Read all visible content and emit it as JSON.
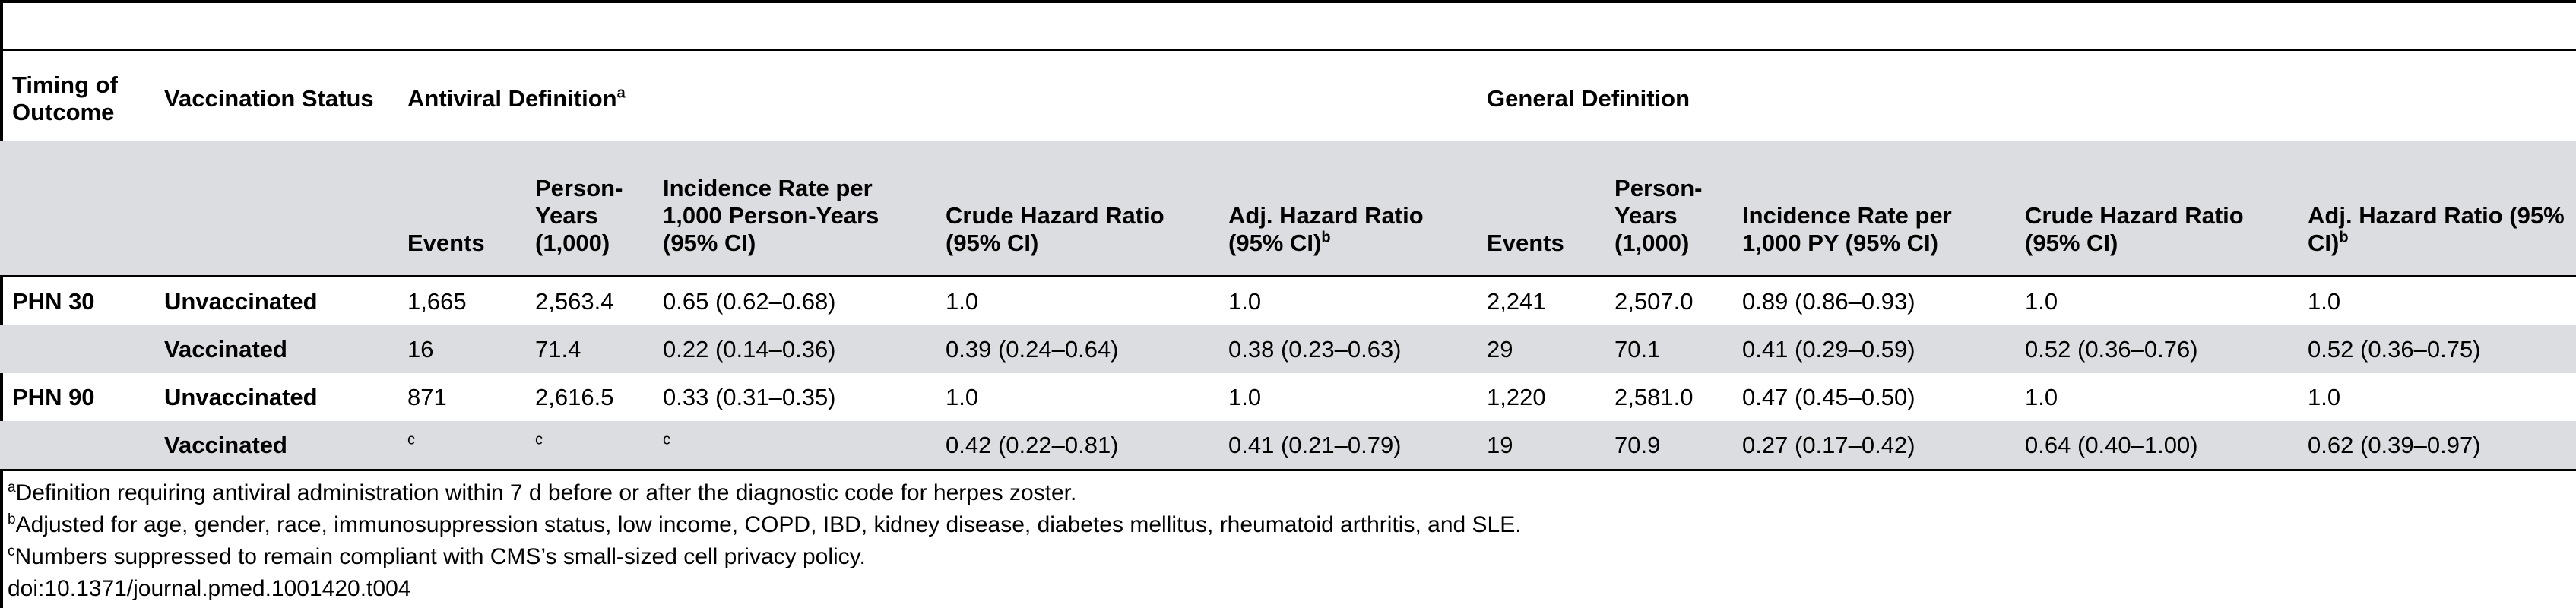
{
  "table": {
    "header": {
      "timing": "Timing of Outcome",
      "vaccination": "Vaccination Status",
      "antiviral_group": "Antiviral Definition",
      "antiviral_group_note": "a",
      "general_group": "General Definition",
      "antiviral_cols": [
        {
          "label": "Events",
          "note": ""
        },
        {
          "label": "Person-Years (1,000)",
          "note": ""
        },
        {
          "label": "Incidence Rate per 1,000 Person-Years (95% CI)",
          "note": ""
        },
        {
          "label": "Crude Hazard Ratio (95% CI)",
          "note": ""
        },
        {
          "label": "Adj. Hazard Ratio (95% CI)",
          "note": "b"
        }
      ],
      "general_cols": [
        {
          "label": "Events",
          "note": ""
        },
        {
          "label": "Person-Years (1,000)",
          "note": ""
        },
        {
          "label": "Incidence Rate per 1,000 PY (95% CI)",
          "note": ""
        },
        {
          "label": "Crude Hazard Ratio (95% CI)",
          "note": ""
        },
        {
          "label": "Adj. Hazard Ratio (95% CI)",
          "note": "b"
        }
      ]
    },
    "rows": [
      {
        "timing": "PHN 30",
        "status": "Unvaccinated",
        "a_events": "1,665",
        "a_py": "2,563.4",
        "a_ir": "0.65 (0.62–0.68)",
        "a_crude": "1.0",
        "a_adj": "1.0",
        "g_events": "2,241",
        "g_py": "2,507.0",
        "g_ir": "0.89 (0.86–0.93)",
        "g_crude": "1.0",
        "g_adj": "1.0"
      },
      {
        "timing": "",
        "status": "Vaccinated",
        "a_events": "16",
        "a_py": "71.4",
        "a_ir": "0.22 (0.14–0.36)",
        "a_crude": "0.39 (0.24–0.64)",
        "a_adj": "0.38 (0.23–0.63)",
        "g_events": "29",
        "g_py": "70.1",
        "g_ir": "0.41 (0.29–0.59)",
        "g_crude": "0.52 (0.36–0.76)",
        "g_adj": "0.52 (0.36–0.75)"
      },
      {
        "timing": "PHN 90",
        "status": "Unvaccinated",
        "a_events": "871",
        "a_py": "2,616.5",
        "a_ir": "0.33 (0.31–0.35)",
        "a_crude": "1.0",
        "a_adj": "1.0",
        "g_events": "1,220",
        "g_py": "2,581.0",
        "g_ir": "0.47 (0.45–0.50)",
        "g_crude": "1.0",
        "g_adj": "1.0"
      },
      {
        "timing": "",
        "status": "Vaccinated",
        "a_events": "c",
        "a_py": "c",
        "a_ir": "c",
        "a_crude": "0.42 (0.22–0.81)",
        "a_adj": "0.41 (0.21–0.79)",
        "g_events": "19",
        "g_py": "70.9",
        "g_ir": "0.27 (0.17–0.42)",
        "g_crude": "0.64 (0.40–1.00)",
        "g_adj": "0.62 (0.39–0.97)"
      }
    ]
  },
  "footnotes": [
    {
      "mark": "a",
      "text": "Definition requiring antiviral administration within 7 d before or after the diagnostic code for herpes zoster."
    },
    {
      "mark": "b",
      "text": "Adjusted for age, gender, race, immunosuppression status, low income, COPD, IBD, kidney disease, diabetes mellitus, rheumatoid arthritis, and SLE."
    },
    {
      "mark": "c",
      "text": "Numbers suppressed to remain compliant with CMS’s small-sized cell privacy policy."
    }
  ],
  "doi": "doi:10.1371/journal.pmed.1001420.t004"
}
